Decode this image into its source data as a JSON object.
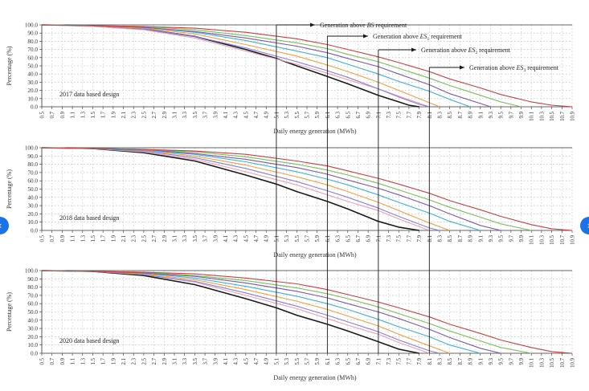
{
  "nav": {
    "prev_symbol": "‹",
    "next_symbol": "›",
    "accent": "#1a73e8"
  },
  "shared_axes": {
    "ylabel": "Percentage (%)",
    "xlabel": "Daily energy generation (MWh)",
    "yticks": [
      "0.0",
      "10.0",
      "20.0",
      "30.0",
      "40.0",
      "50.0",
      "60.0",
      "70.0",
      "80.0",
      "90.0",
      "100.0"
    ],
    "xticks": [
      "0.5",
      "0.7",
      "0.9",
      "1.1",
      "1.3",
      "1.5",
      "1.7",
      "1.9",
      "2.1",
      "2.3",
      "2.5",
      "2.7",
      "2.9",
      "3.1",
      "3.3",
      "3.5",
      "3.7",
      "3.9",
      "4.1",
      "4.3",
      "4.5",
      "4.7",
      "4.9",
      "5.1",
      "5.3",
      "5.5",
      "5.7",
      "5.9",
      "6.1",
      "6.3",
      "6.5",
      "6.7",
      "6.9",
      "7.1",
      "7.3",
      "7.5",
      "7.7",
      "7.9",
      "8.1",
      "8.3",
      "8.5",
      "8.7",
      "8.9",
      "9.1",
      "9.3",
      "9.5",
      "9.7",
      "9.9",
      "10.1",
      "10.3",
      "10.5",
      "10.7",
      "10.9"
    ]
  },
  "annotations": [
    {
      "text_prefix": "Generation above ",
      "text_em": "BS",
      "text_sub": "",
      "text_suffix": " requirement",
      "x_value": 5.1
    },
    {
      "text_prefix": "Generation above ",
      "text_em": "ES",
      "text_sub": "1",
      "text_suffix": " requirement",
      "x_value": 6.1
    },
    {
      "text_prefix": "Generation above ",
      "text_em": "ES",
      "text_sub": "2",
      "text_suffix": " requirement",
      "x_value": 7.1
    },
    {
      "text_prefix": "Generation above ",
      "text_em": "ES",
      "text_sub": "3",
      "text_suffix": " requirement",
      "x_value": 8.1
    }
  ],
  "chart_data": [
    {
      "type": "line",
      "panel_label": "2017 data based design",
      "xlim": [
        0.5,
        10.9
      ],
      "ylim": [
        0,
        100
      ],
      "grid": true,
      "series": [
        {
          "color": "#1a1a1a",
          "x": [
            0.5,
            1.5,
            2.5,
            3.5,
            4.5,
            5.1,
            5.5,
            6.1,
            6.5,
            7.1,
            7.5,
            7.7,
            7.9
          ],
          "values": [
            100,
            99,
            95,
            86,
            70,
            59,
            50,
            37,
            28,
            14,
            6,
            2,
            0
          ]
        },
        {
          "color": "#e8a0b8",
          "x": [
            0.5,
            1.5,
            2.5,
            3.5,
            4.5,
            5.5,
            6.1,
            6.5,
            7.1,
            7.5,
            8.1
          ],
          "values": [
            100,
            98,
            94,
            84,
            68,
            52,
            41,
            33,
            22,
            13,
            0
          ]
        },
        {
          "color": "#8a7fd4",
          "x": [
            0.5,
            1.5,
            2.5,
            3.5,
            4.5,
            5.5,
            6.1,
            6.5,
            7.1,
            7.5,
            7.9,
            8.1
          ],
          "values": [
            100,
            99,
            95,
            86,
            72,
            55,
            44,
            36,
            22,
            12,
            3,
            0
          ]
        },
        {
          "color": "#f0a040",
          "x": [
            0.5,
            1.5,
            2.5,
            3.5,
            4.5,
            5.5,
            6.1,
            6.5,
            7.1,
            7.5,
            7.9,
            8.3
          ],
          "values": [
            100,
            99,
            96,
            89,
            76,
            62,
            51,
            43,
            30,
            20,
            10,
            0
          ]
        },
        {
          "color": "#40b0d8",
          "x": [
            0.5,
            1.5,
            2.5,
            3.5,
            4.5,
            5.5,
            6.1,
            6.5,
            7.1,
            7.5,
            8.1,
            8.5,
            8.9
          ],
          "values": [
            100,
            99,
            97,
            91,
            81,
            68,
            60,
            52,
            40,
            31,
            19,
            9,
            0
          ]
        },
        {
          "color": "#7a5aa8",
          "x": [
            0.5,
            1.5,
            2.5,
            3.5,
            4.5,
            5.5,
            6.1,
            6.5,
            7.1,
            7.5,
            8.1,
            8.5,
            9.1,
            9.3
          ],
          "values": [
            100,
            99,
            97,
            92,
            84,
            74,
            66,
            59,
            49,
            40,
            27,
            16,
            4,
            0
          ]
        },
        {
          "color": "#7bbf5a",
          "x": [
            0.5,
            1.5,
            2.5,
            3.5,
            4.5,
            5.5,
            6.1,
            6.5,
            7.1,
            7.5,
            8.1,
            8.5,
            9.1,
            9.5,
            9.9
          ],
          "values": [
            100,
            99,
            98,
            94,
            87,
            78,
            71,
            64,
            55,
            47,
            35,
            26,
            14,
            6,
            0
          ]
        },
        {
          "color": "#c84040",
          "x": [
            0.5,
            1.5,
            2.5,
            3.5,
            4.5,
            5.5,
            6.1,
            6.5,
            7.1,
            7.5,
            8.1,
            8.5,
            9.1,
            9.5,
            10.1,
            10.5,
            10.9
          ],
          "values": [
            100,
            99,
            98,
            96,
            91,
            83,
            76,
            70,
            61,
            54,
            43,
            34,
            23,
            15,
            6,
            2,
            0
          ]
        }
      ]
    },
    {
      "type": "line",
      "panel_label": "2018 data based design",
      "xlim": [
        0.5,
        10.9
      ],
      "ylim": [
        0,
        100
      ],
      "grid": true,
      "series": [
        {
          "color": "#1a1a1a",
          "x": [
            0.5,
            1.5,
            2.5,
            3.5,
            4.5,
            5.1,
            5.5,
            6.1,
            6.5,
            7.1,
            7.5,
            7.9
          ],
          "values": [
            100,
            99,
            94,
            84,
            67,
            56,
            47,
            35,
            26,
            11,
            4,
            0
          ]
        },
        {
          "color": "#e8a0b8",
          "x": [
            0.5,
            1.5,
            2.5,
            3.5,
            4.5,
            5.5,
            6.1,
            6.5,
            7.1,
            7.5,
            8.1
          ],
          "values": [
            100,
            99,
            95,
            86,
            71,
            55,
            43,
            35,
            24,
            14,
            0
          ]
        },
        {
          "color": "#8a7fd4",
          "x": [
            0.5,
            1.5,
            2.5,
            3.5,
            4.5,
            5.5,
            6.1,
            6.5,
            7.1,
            7.5,
            8.1,
            8.3
          ],
          "values": [
            100,
            99,
            96,
            88,
            75,
            59,
            48,
            40,
            27,
            17,
            3,
            0
          ]
        },
        {
          "color": "#f0a040",
          "x": [
            0.5,
            1.5,
            2.5,
            3.5,
            4.5,
            5.5,
            6.1,
            6.5,
            7.1,
            7.5,
            8.1,
            8.5
          ],
          "values": [
            100,
            99,
            97,
            90,
            79,
            65,
            55,
            47,
            34,
            24,
            9,
            0
          ]
        },
        {
          "color": "#40b0d8",
          "x": [
            0.5,
            1.5,
            2.5,
            3.5,
            4.5,
            5.5,
            6.1,
            6.5,
            7.1,
            7.5,
            8.1,
            8.5,
            9.1
          ],
          "values": [
            100,
            99,
            97,
            92,
            83,
            71,
            62,
            55,
            43,
            34,
            21,
            11,
            0
          ]
        },
        {
          "color": "#7a5aa8",
          "x": [
            0.5,
            1.5,
            2.5,
            3.5,
            4.5,
            5.5,
            6.1,
            6.5,
            7.1,
            7.5,
            8.1,
            8.5,
            9.1,
            9.5
          ],
          "values": [
            100,
            99,
            98,
            93,
            86,
            76,
            68,
            61,
            51,
            43,
            30,
            20,
            6,
            0
          ]
        },
        {
          "color": "#7bbf5a",
          "x": [
            0.5,
            1.5,
            2.5,
            3.5,
            4.5,
            5.5,
            6.1,
            6.5,
            7.1,
            7.5,
            8.1,
            8.5,
            9.1,
            9.5,
            10.1
          ],
          "values": [
            100,
            99,
            98,
            95,
            89,
            80,
            73,
            67,
            57,
            49,
            37,
            28,
            16,
            8,
            0
          ]
        },
        {
          "color": "#c84040",
          "x": [
            0.5,
            1.5,
            2.5,
            3.5,
            4.5,
            5.5,
            6.1,
            6.5,
            7.1,
            7.5,
            8.1,
            8.5,
            9.1,
            9.5,
            10.1,
            10.5,
            10.9
          ],
          "values": [
            100,
            99,
            98,
            96,
            92,
            84,
            78,
            72,
            63,
            56,
            45,
            36,
            25,
            17,
            7,
            2,
            0
          ]
        }
      ]
    },
    {
      "type": "line",
      "panel_label": "2020 data based design",
      "xlim": [
        0.5,
        10.9
      ],
      "ylim": [
        0,
        100
      ],
      "grid": true,
      "series": [
        {
          "color": "#1a1a1a",
          "x": [
            0.5,
            1.5,
            2.5,
            3.5,
            4.5,
            5.1,
            5.5,
            6.1,
            6.5,
            7.1,
            7.5,
            7.9
          ],
          "values": [
            100,
            99,
            94,
            83,
            66,
            55,
            46,
            35,
            27,
            14,
            5,
            0
          ]
        },
        {
          "color": "#e8a0b8",
          "x": [
            0.5,
            1.5,
            2.5,
            3.5,
            4.5,
            5.5,
            6.1,
            6.5,
            7.1,
            7.5,
            8.1
          ],
          "values": [
            100,
            99,
            95,
            86,
            70,
            54,
            42,
            34,
            23,
            13,
            0
          ]
        },
        {
          "color": "#8a7fd4",
          "x": [
            0.5,
            1.5,
            2.5,
            3.5,
            4.5,
            5.5,
            6.1,
            6.5,
            7.1,
            7.5,
            8.1,
            8.3
          ],
          "values": [
            100,
            99,
            95,
            87,
            73,
            57,
            46,
            38,
            26,
            16,
            3,
            0
          ]
        },
        {
          "color": "#f0a040",
          "x": [
            0.5,
            1.5,
            2.5,
            3.5,
            4.5,
            5.5,
            6.1,
            6.5,
            7.1,
            7.5,
            8.1,
            8.5
          ],
          "values": [
            100,
            99,
            96,
            89,
            77,
            63,
            53,
            45,
            33,
            23,
            9,
            0
          ]
        },
        {
          "color": "#40b0d8",
          "x": [
            0.5,
            1.5,
            2.5,
            3.5,
            4.5,
            5.5,
            6.1,
            6.5,
            7.1,
            7.5,
            8.1,
            8.5,
            9.1
          ],
          "values": [
            100,
            99,
            97,
            91,
            81,
            69,
            60,
            53,
            41,
            32,
            20,
            10,
            0
          ]
        },
        {
          "color": "#7a5aa8",
          "x": [
            0.5,
            1.5,
            2.5,
            3.5,
            4.5,
            5.5,
            6.1,
            6.5,
            7.1,
            7.5,
            8.1,
            8.5,
            9.1,
            9.5
          ],
          "values": [
            100,
            99,
            97,
            93,
            85,
            75,
            67,
            60,
            50,
            42,
            29,
            19,
            6,
            0
          ]
        },
        {
          "color": "#7bbf5a",
          "x": [
            0.5,
            1.5,
            2.5,
            3.5,
            4.5,
            5.5,
            6.1,
            6.5,
            7.1,
            7.5,
            8.1,
            8.5,
            9.1,
            9.5,
            10.1
          ],
          "values": [
            100,
            99,
            98,
            94,
            88,
            79,
            72,
            66,
            56,
            48,
            36,
            27,
            15,
            7,
            0
          ]
        },
        {
          "color": "#c84040",
          "x": [
            0.5,
            1.5,
            2.5,
            3.5,
            4.5,
            5.5,
            6.1,
            6.5,
            7.1,
            7.5,
            8.1,
            8.5,
            9.1,
            9.5,
            10.1,
            10.5,
            10.9
          ],
          "values": [
            100,
            99,
            98,
            96,
            91,
            84,
            77,
            71,
            62,
            55,
            44,
            35,
            24,
            16,
            7,
            2,
            0
          ]
        }
      ]
    }
  ]
}
